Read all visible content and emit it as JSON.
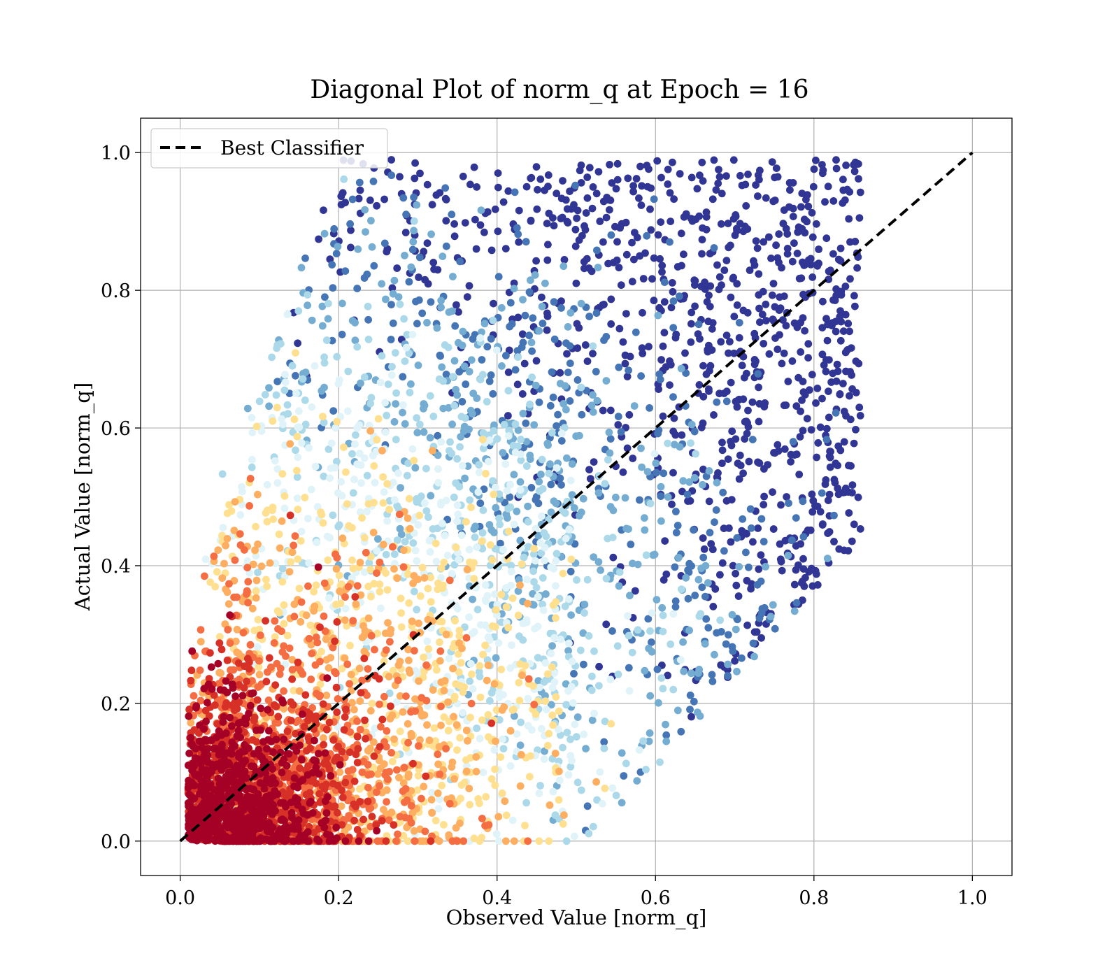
{
  "chart_data": {
    "type": "scatter",
    "title": "Diagonal Plot of norm_q at Epoch = 16",
    "xlabel": "Observed Value [norm_q]",
    "ylabel": "Actual Value [norm_q]",
    "xlim": [
      -0.05,
      1.05
    ],
    "ylim": [
      -0.05,
      1.05
    ],
    "xticks": [
      0.0,
      0.2,
      0.4,
      0.6,
      0.8,
      1.0
    ],
    "yticks": [
      0.0,
      0.2,
      0.4,
      0.6,
      0.8,
      1.0
    ],
    "xtick_labels": [
      "0.0",
      "0.2",
      "0.4",
      "0.6",
      "0.8",
      "1.0"
    ],
    "ytick_labels": [
      "0.0",
      "0.2",
      "0.4",
      "0.6",
      "0.8",
      "1.0"
    ],
    "grid": true,
    "legend_position": "top-left",
    "reference_line": {
      "name": "Best Classifier",
      "x": [
        0.0,
        1.0
      ],
      "y": [
        0.0,
        1.0
      ],
      "style": "dashed",
      "color": "#000000"
    },
    "colormap": "RdYlBu",
    "colors": [
      "#a50026",
      "#d73027",
      "#f46d43",
      "#fdae61",
      "#fee090",
      "#e0f3f8",
      "#abd9e9",
      "#74add1",
      "#4575b4",
      "#313695"
    ],
    "clusters": [
      {
        "x_range": [
          0.01,
          0.3
        ],
        "y_range": [
          0.0,
          0.3
        ],
        "density": "highest",
        "dominant_colors": [
          "#d73027",
          "#f46d43",
          "#fdae61",
          "#fee090"
        ]
      },
      {
        "x_range": [
          0.1,
          0.45
        ],
        "y_range": [
          0.0,
          0.55
        ],
        "density": "high",
        "dominant_colors": [
          "#fee090",
          "#e0f3f8",
          "#abd9e9"
        ]
      },
      {
        "x_range": [
          0.05,
          0.85
        ],
        "y_range": [
          0.0,
          1.0
        ],
        "density": "medium",
        "dominant_colors": [
          "#74add1",
          "#4575b4",
          "#313695"
        ]
      }
    ]
  }
}
